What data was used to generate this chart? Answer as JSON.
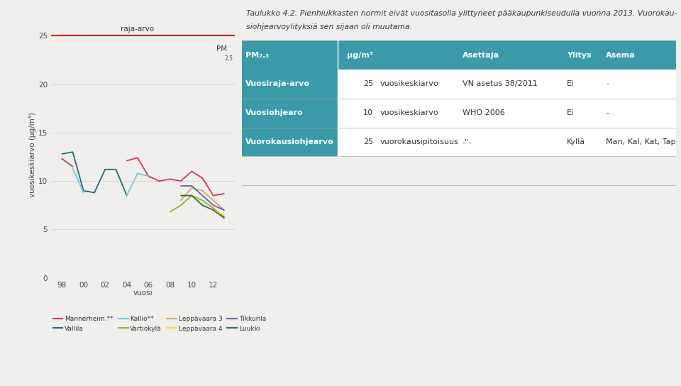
{
  "title_text_1": "Taulukko 4.2. Pienhiukkasten normit eivät vuositasolla ylittyneet pääkaupunkiseudulla vuonna 2013. Vuorokau-",
  "title_text_2": "siohjearvoylityksiä sen sijaan oli muutama.",
  "bg_color": "#f0efeb",
  "chart": {
    "ylim": [
      0,
      25
    ],
    "yticks": [
      0,
      5,
      10,
      15,
      20,
      25
    ],
    "ylabel": "vuosikeskiarvo (µg/m³)",
    "xlabel": "vuosi",
    "raja_arvo": 25,
    "raja_label": "raja-arvo",
    "x_ticks": [
      98,
      100,
      102,
      104,
      106,
      108,
      110,
      112
    ],
    "x_tick_labels": [
      "98",
      "00",
      "02",
      "04",
      "06",
      "08",
      "10",
      "12"
    ],
    "xlim": [
      97,
      114
    ],
    "series": {
      "Mannerheim.**": {
        "color": "#c8386b",
        "segments": [
          {
            "x": [
              98,
              99
            ],
            "y": [
              12.3,
              11.5
            ]
          },
          {
            "x": [
              104,
              105,
              106,
              107,
              108,
              109,
              110,
              111,
              112,
              113
            ],
            "y": [
              12.1,
              12.4,
              10.5,
              10.0,
              10.2,
              10.0,
              11.0,
              10.3,
              8.5,
              8.7
            ]
          }
        ]
      },
      "Vallila": {
        "color": "#1e6b78",
        "segments": [
          {
            "x": [
              98,
              99,
              100,
              101,
              102,
              103,
              104
            ],
            "y": [
              12.8,
              13.0,
              9.0,
              8.8,
              11.2,
              11.2,
              8.5
            ]
          }
        ]
      },
      "Kallio**": {
        "color": "#6ecae0",
        "segments": [
          {
            "x": [
              99,
              100
            ],
            "y": [
              11.3,
              8.8
            ]
          },
          {
            "x": [
              104,
              105,
              106
            ],
            "y": [
              8.5,
              10.8,
              10.5
            ]
          }
        ]
      },
      "Vartiokylä": {
        "color": "#8db53c",
        "segments": [
          {
            "x": [
              108,
              109,
              110,
              111,
              112,
              113
            ],
            "y": [
              6.8,
              7.5,
              8.5,
              8.0,
              7.2,
              6.3
            ]
          }
        ]
      },
      "Leppävaara 3": {
        "color": "#d4aa6e",
        "segments": [
          {
            "x": [
              109,
              110,
              111,
              112,
              113
            ],
            "y": [
              8.0,
              9.3,
              9.0,
              8.0,
              7.0
            ]
          }
        ]
      },
      "Leppävaara 4": {
        "color": "#f5e040",
        "segments": [
          {
            "x": [
              112,
              113
            ],
            "y": [
              7.0,
              6.5
            ]
          }
        ]
      },
      "Tikkurila": {
        "color": "#7060a8",
        "segments": [
          {
            "x": [
              109,
              110,
              111,
              112,
              113
            ],
            "y": [
              9.5,
              9.5,
              8.5,
              7.5,
              7.0
            ]
          }
        ]
      },
      "Luukki": {
        "color": "#3a6b3a",
        "segments": [
          {
            "x": [
              109,
              110,
              111,
              112,
              113
            ],
            "y": [
              8.5,
              8.5,
              7.5,
              7.0,
              6.2
            ]
          }
        ]
      }
    },
    "legend_order": [
      "Mannerheim.**",
      "Vallila",
      "Kallio**",
      "Vartiokylä",
      "Leppävaara 3",
      "Leppävaara 4",
      "Tikkurila",
      "Luukki"
    ]
  },
  "table": {
    "header_bg": "#3a9aaa",
    "header_fg": "#ffffff",
    "label_bg": "#3a9aaa",
    "label_fg": "#ffffff",
    "data_bg": "#ffffff",
    "data_fg": "#333333",
    "border_color": "#cccccc",
    "col_ratios": [
      0.22,
      0.09,
      0.19,
      0.24,
      0.09,
      0.17
    ],
    "headers": [
      "PM₂.₅",
      "µg/m³",
      "",
      "Asettaja",
      "Ylitys",
      "Asema"
    ],
    "rows": [
      [
        "Vuosiraja-arvo",
        "25",
        "vuosikeskiarvo",
        "VN asetus 38/2011",
        "Ei",
        "-"
      ],
      [
        "Vuosiohjearo",
        "10",
        "vuosikeskiarvo",
        "WHO 2006",
        "Ei",
        "-"
      ],
      [
        "Vuorokausiohjearvo",
        "25",
        "vuorokausipitoisuus",
        "-\"-",
        "Kyllä",
        "Man, Kal, Kat, Tap"
      ]
    ]
  }
}
